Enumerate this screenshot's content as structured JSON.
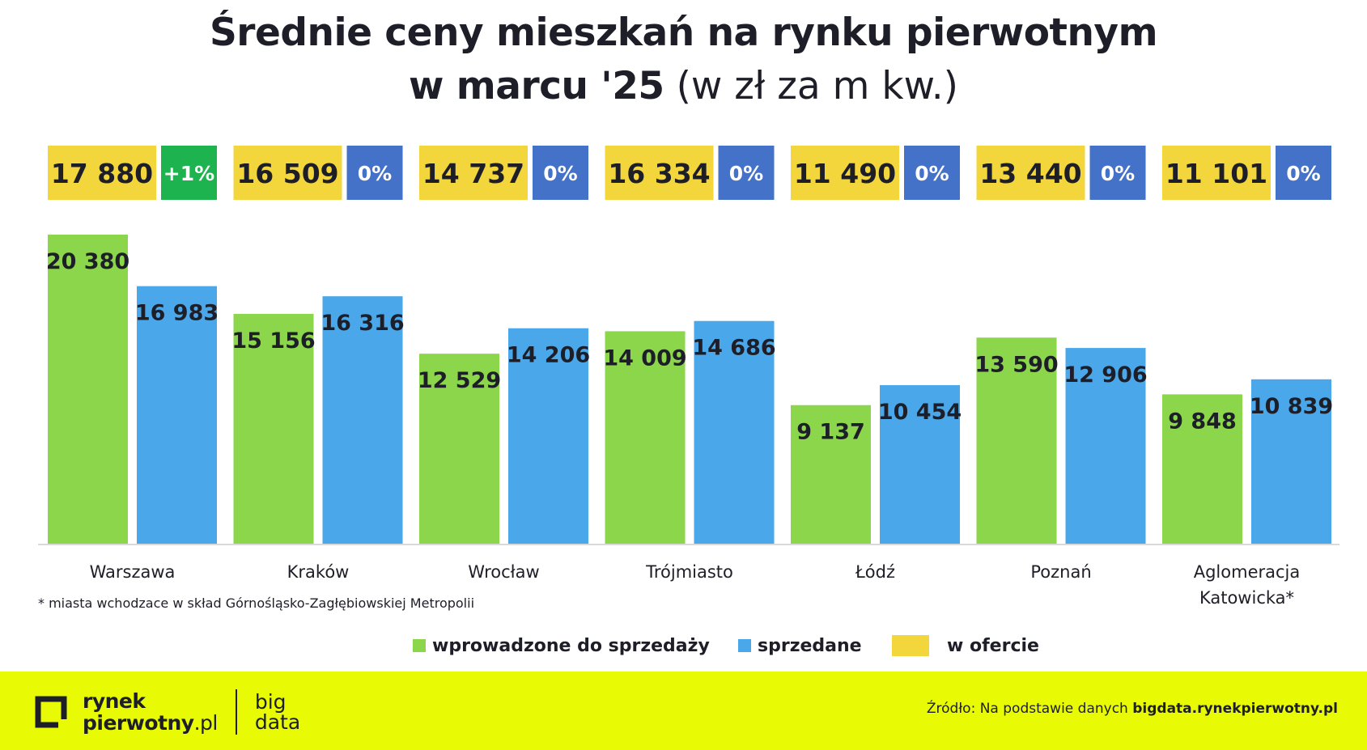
{
  "header": {
    "title_line1": "Średnie ceny mieszkań na rynku pierwotnym",
    "title_line2_bold": "w marcu '25",
    "title_line2_light": "(w zł za m kw.)"
  },
  "colors": {
    "introduced": "#8bd64a",
    "sold": "#4aa8ea",
    "offer": "#f2d63c",
    "change_positive": "#1db34f",
    "change_zero": "#4472c8",
    "footer_bg": "#e8fb05",
    "text": "#1e1e28"
  },
  "chart_data": {
    "type": "bar",
    "title": "Średnie ceny mieszkań na rynku pierwotnym w marcu '25 (w zł za m kw.)",
    "categories": [
      "Warszawa",
      "Kraków",
      "Wrocław",
      "Trójmiasto",
      "Łódź",
      "Poznań",
      "Aglomeracja Katowicka*"
    ],
    "category_label_lines": [
      [
        "Warszawa"
      ],
      [
        "Kraków"
      ],
      [
        "Wrocław"
      ],
      [
        "Trójmiasto"
      ],
      [
        "Łódź"
      ],
      [
        "Poznań"
      ],
      [
        "Aglomeracja",
        "Katowicka*"
      ]
    ],
    "series": [
      {
        "name": "wprowadzone do sprzedaży",
        "color": "#8bd64a",
        "values": [
          20380,
          15156,
          12529,
          14009,
          9137,
          13590,
          9848
        ],
        "labels": [
          "20 380",
          "15 156",
          "12 529",
          "14 009",
          "9 137",
          "13 590",
          "9 848"
        ]
      },
      {
        "name": "sprzedane",
        "color": "#4aa8ea",
        "values": [
          16983,
          16316,
          14206,
          14686,
          10454,
          12906,
          10839
        ],
        "labels": [
          "16 983",
          "16 316",
          "14 206",
          "14 686",
          "10 454",
          "12 906",
          "10 839"
        ]
      }
    ],
    "offer": {
      "name": "w ofercie",
      "color": "#f2d63c",
      "values": [
        17880,
        16509,
        14737,
        16334,
        11490,
        13440,
        11101
      ],
      "labels": [
        "17 880",
        "16 509",
        "14 737",
        "16 334",
        "11 490",
        "13 440",
        "11 101"
      ],
      "changes": [
        "+1%",
        "0%",
        "0%",
        "0%",
        "0%",
        "0%",
        "0%"
      ]
    },
    "ylim": [
      0,
      20380
    ],
    "grid": false,
    "legend_position": "bottom"
  },
  "footnote": "* miasta wchodzace w skład Górnośląsko-Zagłębiowskiej Metropolii",
  "legend": {
    "introduced": "wprowadzone do sprzedaży",
    "sold": "sprzedane",
    "offer": "w ofercie"
  },
  "footer": {
    "logo_line1": "rynek",
    "logo_line2_bold": "pierwotny",
    "logo_line2_light": ".pl",
    "bigdata_line1": "big",
    "bigdata_line2": "data",
    "source_prefix": "Źródło: Na podstawie danych",
    "source_bold": "bigdata.rynekpierwotny.pl"
  }
}
